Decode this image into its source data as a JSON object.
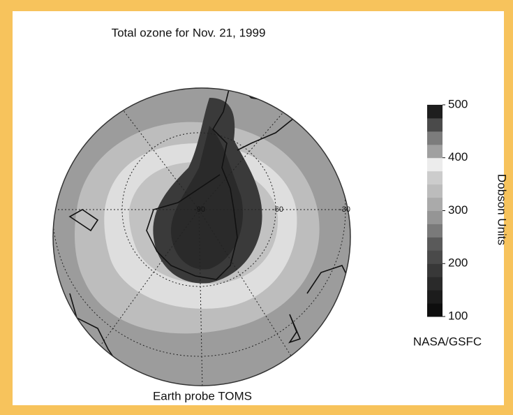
{
  "title": "Total ozone for Nov. 21, 1999",
  "caption": "Earth probe TOMS",
  "credit": "NASA/GSFC",
  "map": {
    "latitude_labels": [
      "-90",
      "-60",
      "-30"
    ]
  },
  "colorbar": {
    "label": "Dobson Units",
    "range": [
      100,
      500
    ],
    "ticks": [
      100,
      200,
      300,
      400,
      500
    ],
    "colors": [
      "#0e0e0e",
      "#1c1c1c",
      "#2a2a2a",
      "#383838",
      "#4a4a4a",
      "#5a5a5a",
      "#7a7a7a",
      "#959595",
      "#aaaaaa",
      "#bcbcbc",
      "#cccccc",
      "#ececec",
      "#a0a0a0",
      "#7c7c7c",
      "#4a4a4a",
      "#1e1e1e"
    ]
  }
}
